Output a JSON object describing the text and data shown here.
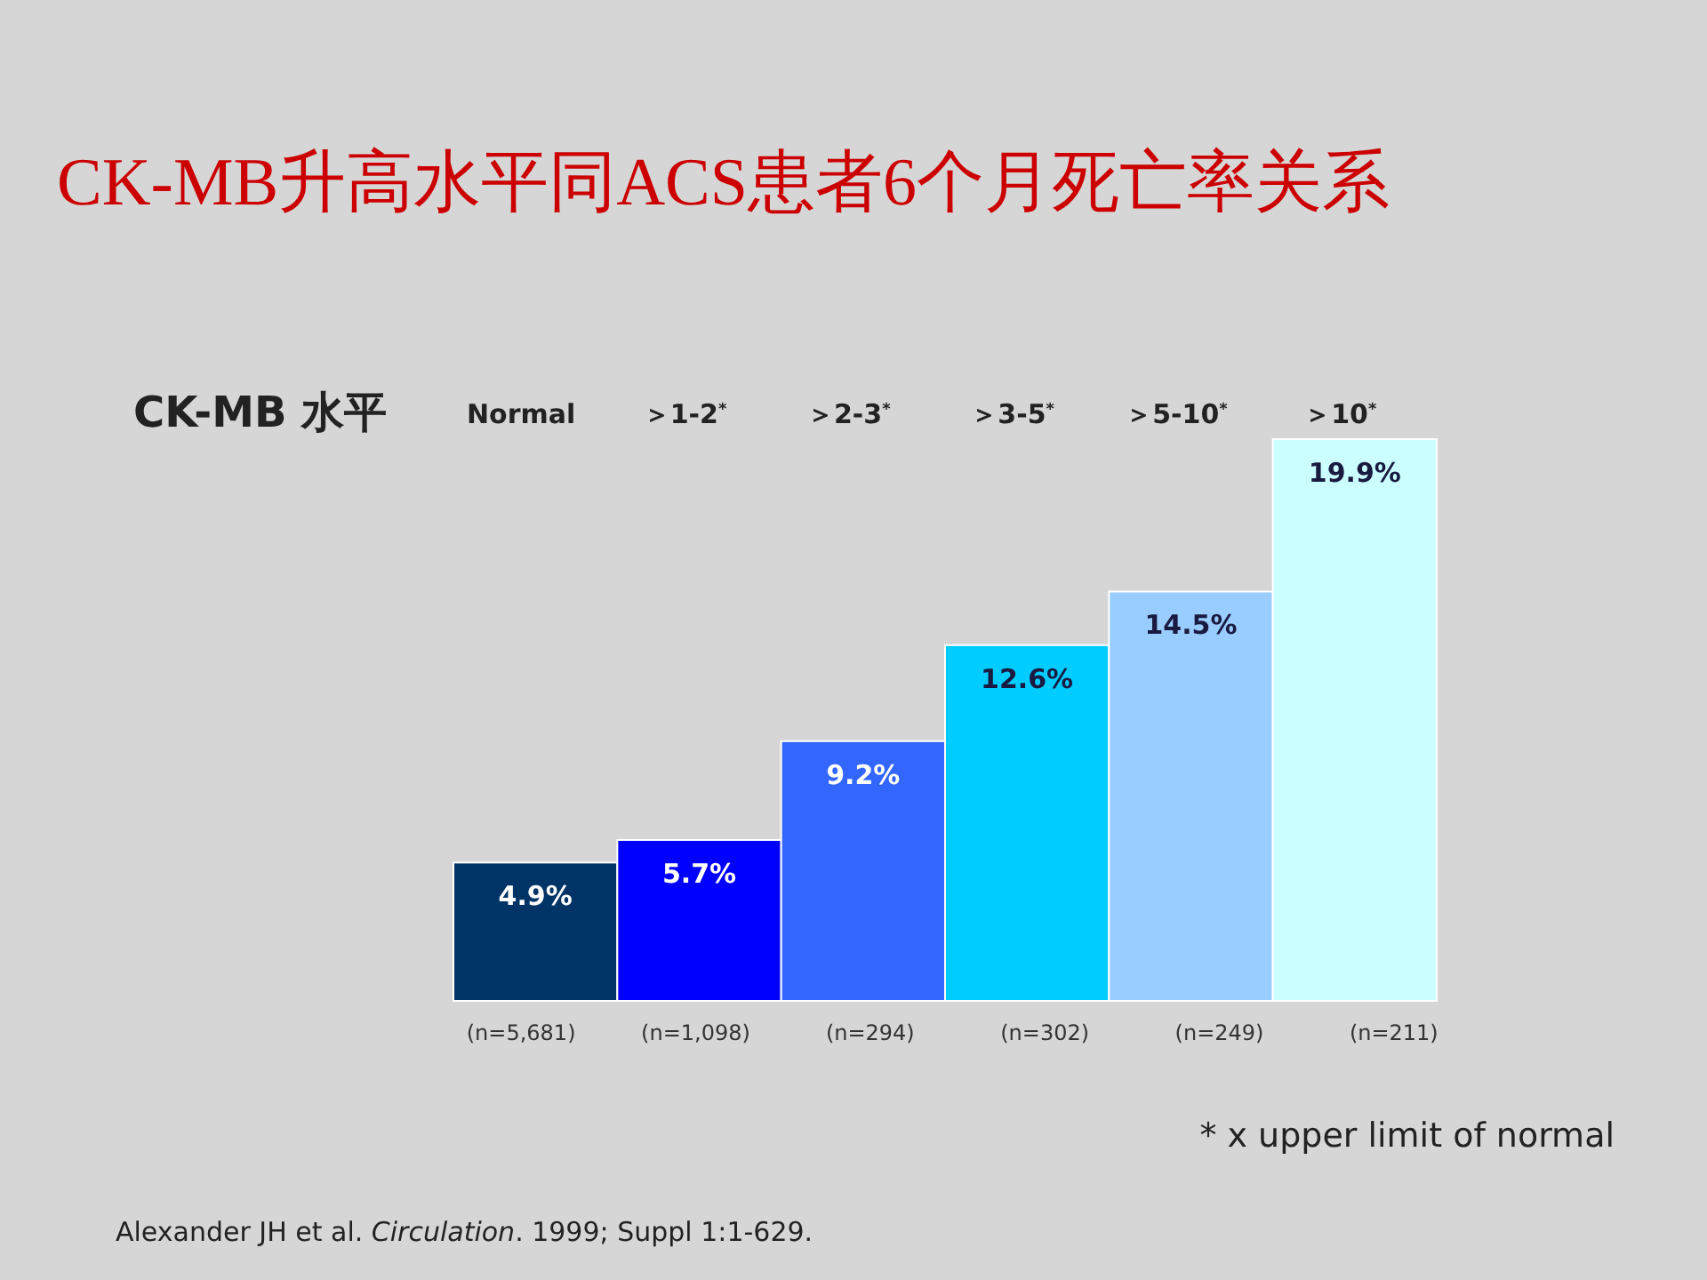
{
  "chart_data": {
    "type": "bar",
    "title": "CK-MB升高水平同ACS患者6个月死亡率关系",
    "xlabel": "CK-MB 水平",
    "categories": [
      "Normal",
      "＞1-2$^{*}$",
      "＞2-3$^{*}$",
      "＞3-5$^{*}$",
      "＞5-10$^{*}$",
      "＞10$^{*}$"
    ],
    "values": [
      4.9,
      5.7,
      9.2,
      12.6,
      14.5,
      19.9
    ],
    "colors": [
      "#003366",
      "#0000ff",
      "#3366ff",
      "#00ccff",
      "#99ccff",
      "#ccffff"
    ],
    "value_labels": [
      "4.9%",
      "5.7%",
      "9.2%",
      "12.6%",
      "14.5%",
      "19.9%"
    ],
    "annotations": [
      "(n=5,681)",
      "(n=1,098)",
      "(n=294)",
      "(n=302)",
      "(n=249)",
      "(n=211)",
      "* x upper limit of normal",
      "Alexander JH et al. *Circulation*. 1999; Suppl 1:1-629."
    ]
  }
}
